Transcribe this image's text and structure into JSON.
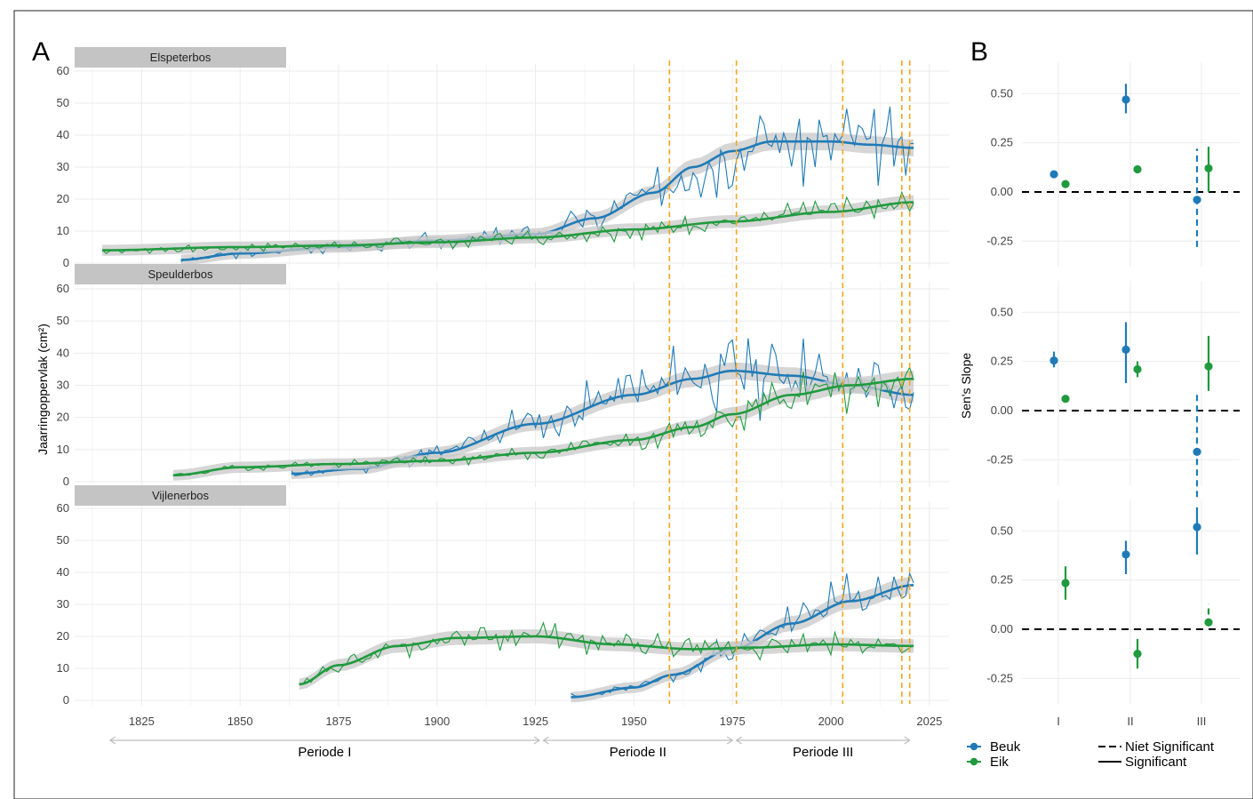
{
  "panel_labels": {
    "a": "A",
    "b": "B"
  },
  "colors": {
    "beuk": "#1f7bb7",
    "eik": "#1f9a3e",
    "periode_line": "#f5a623",
    "smooth_band": "#c8c8c8",
    "strip_bg": "#c4c4c4",
    "grid": "#ebebeb"
  },
  "chart_data": [
    {
      "id": "A",
      "type": "line",
      "ylabel": "Jaarringoppervlak (cm²)",
      "x_ticks": [
        1825,
        1850,
        1875,
        1900,
        1925,
        1950,
        1975,
        2000,
        2025
      ],
      "x_range": [
        1808,
        2030
      ],
      "y_ticks": [
        0,
        10,
        20,
        30,
        40,
        50,
        60
      ],
      "ylim": [
        0,
        60
      ],
      "periode_markers": [
        1959,
        1976,
        2003,
        2018,
        2020
      ],
      "periods": [
        {
          "label": "Periode I",
          "from": 1817,
          "to": 1926
        },
        {
          "label": "Periode II",
          "from": 1927,
          "to": 1975
        },
        {
          "label": "Periode III",
          "from": 1976,
          "to": 2020
        }
      ],
      "facets": [
        {
          "name": "Elspeterbos",
          "series": [
            {
              "name": "Beuk",
              "start": 1835,
              "end": 2021,
              "knots": [
                [
                  1835,
                  1
                ],
                [
                  1850,
                  3
                ],
                [
                  1875,
                  5
                ],
                [
                  1900,
                  7
                ],
                [
                  1925,
                  9
                ],
                [
                  1940,
                  14
                ],
                [
                  1955,
                  22
                ],
                [
                  1965,
                  30
                ],
                [
                  1975,
                  35
                ],
                [
                  1985,
                  38
                ],
                [
                  2000,
                  38
                ],
                [
                  2010,
                  37
                ],
                [
                  2021,
                  36
                ]
              ],
              "noise": 0.42,
              "seed": 3
            },
            {
              "name": "Eik",
              "start": 1815,
              "end": 2021,
              "knots": [
                [
                  1815,
                  4
                ],
                [
                  1850,
                  5
                ],
                [
                  1875,
                  5.5
                ],
                [
                  1900,
                  6.5
                ],
                [
                  1925,
                  8
                ],
                [
                  1950,
                  10.5
                ],
                [
                  1975,
                  13
                ],
                [
                  2000,
                  16
                ],
                [
                  2021,
                  19
                ]
              ],
              "noise": 0.35,
              "seed": 7
            }
          ]
        },
        {
          "name": "Speulderbos",
          "series": [
            {
              "name": "Beuk",
              "start": 1863,
              "end": 2021,
              "knots": [
                [
                  1863,
                  2.5
                ],
                [
                  1880,
                  4
                ],
                [
                  1900,
                  9
                ],
                [
                  1925,
                  18
                ],
                [
                  1950,
                  27
                ],
                [
                  1965,
                  32
                ],
                [
                  1975,
                  34.5
                ],
                [
                  1990,
                  33
                ],
                [
                  2005,
                  30
                ],
                [
                  2021,
                  27
                ]
              ],
              "noise": 0.45,
              "seed": 11
            },
            {
              "name": "Eik",
              "start": 1833,
              "end": 2021,
              "knots": [
                [
                  1833,
                  2
                ],
                [
                  1850,
                  4.5
                ],
                [
                  1875,
                  5.5
                ],
                [
                  1900,
                  6.5
                ],
                [
                  1925,
                  9
                ],
                [
                  1950,
                  13
                ],
                [
                  1965,
                  17
                ],
                [
                  1975,
                  21
                ],
                [
                  1990,
                  27
                ],
                [
                  2005,
                  30
                ],
                [
                  2021,
                  32
                ]
              ],
              "noise": 0.3,
              "seed": 19
            }
          ]
        },
        {
          "name": "Vijlenerbos",
          "series": [
            {
              "name": "Beuk",
              "start": 1934,
              "end": 2021,
              "knots": [
                [
                  1934,
                  1
                ],
                [
                  1950,
                  4
                ],
                [
                  1960,
                  8
                ],
                [
                  1975,
                  16
                ],
                [
                  1990,
                  24
                ],
                [
                  2005,
                  31
                ],
                [
                  2021,
                  36
                ]
              ],
              "noise": 0.32,
              "seed": 23
            },
            {
              "name": "Eik",
              "start": 1865,
              "end": 2021,
              "knots": [
                [
                  1865,
                  5
                ],
                [
                  1875,
                  11
                ],
                [
                  1890,
                  17
                ],
                [
                  1905,
                  19.5
                ],
                [
                  1925,
                  20
                ],
                [
                  1945,
                  17.5
                ],
                [
                  1965,
                  16
                ],
                [
                  1980,
                  16.5
                ],
                [
                  2000,
                  17.5
                ],
                [
                  2021,
                  17
                ]
              ],
              "noise": 0.27,
              "seed": 29
            }
          ]
        }
      ]
    },
    {
      "id": "B",
      "type": "scatter",
      "ylabel": "Sen's Slope",
      "categories": [
        "I",
        "II",
        "III"
      ],
      "y_ticks": [
        -0.25,
        0.0,
        0.25,
        0.5
      ],
      "y_tick_labels": [
        "-0.25",
        "0.00",
        "0.25",
        "0.50"
      ],
      "ylim": [
        -0.38,
        0.66
      ],
      "reference_line": 0.0,
      "facets": [
        {
          "name": "Elspeterbos",
          "points": [
            {
              "series": "Beuk",
              "category": "I",
              "value": 0.09,
              "low": 0.08,
              "high": 0.1,
              "significant": true
            },
            {
              "series": "Eik",
              "category": "I",
              "value": 0.04,
              "low": 0.03,
              "high": 0.05,
              "significant": true
            },
            {
              "series": "Beuk",
              "category": "II",
              "value": 0.47,
              "low": 0.4,
              "high": 0.55,
              "significant": true
            },
            {
              "series": "Eik",
              "category": "II",
              "value": 0.115,
              "low": 0.1,
              "high": 0.13,
              "significant": true
            },
            {
              "series": "Beuk",
              "category": "III",
              "value": -0.04,
              "low": -0.28,
              "high": 0.22,
              "significant": false
            },
            {
              "series": "Eik",
              "category": "III",
              "value": 0.12,
              "low": 0.0,
              "high": 0.23,
              "significant": true
            }
          ]
        },
        {
          "name": "Speulderbos",
          "points": [
            {
              "series": "Beuk",
              "category": "I",
              "value": 0.255,
              "low": 0.22,
              "high": 0.3,
              "significant": true
            },
            {
              "series": "Eik",
              "category": "I",
              "value": 0.06,
              "low": 0.05,
              "high": 0.07,
              "significant": true
            },
            {
              "series": "Beuk",
              "category": "II",
              "value": 0.31,
              "low": 0.14,
              "high": 0.45,
              "significant": true
            },
            {
              "series": "Eik",
              "category": "II",
              "value": 0.21,
              "low": 0.17,
              "high": 0.25,
              "significant": true
            },
            {
              "series": "Beuk",
              "category": "III",
              "value": -0.21,
              "low": -0.44,
              "high": 0.09,
              "significant": false
            },
            {
              "series": "Eik",
              "category": "III",
              "value": 0.225,
              "low": 0.1,
              "high": 0.38,
              "significant": true
            }
          ]
        },
        {
          "name": "Vijlenerbos",
          "points": [
            {
              "series": "Beuk",
              "category": "I",
              "value": null,
              "low": null,
              "high": null,
              "significant": true
            },
            {
              "series": "Eik",
              "category": "I",
              "value": 0.235,
              "low": 0.15,
              "high": 0.32,
              "significant": true
            },
            {
              "series": "Beuk",
              "category": "II",
              "value": 0.38,
              "low": 0.28,
              "high": 0.45,
              "significant": true
            },
            {
              "series": "Eik",
              "category": "II",
              "value": -0.125,
              "low": -0.2,
              "high": -0.05,
              "significant": true
            },
            {
              "series": "Beuk",
              "category": "III",
              "value": 0.52,
              "low": 0.38,
              "high": 0.62,
              "significant": true
            },
            {
              "series": "Eik",
              "category": "III",
              "value": 0.035,
              "low": 0.02,
              "high": 0.13,
              "significant": false
            }
          ]
        }
      ]
    }
  ],
  "legend": {
    "series": [
      {
        "name": "Beuk",
        "color": "#1f7bb7"
      },
      {
        "name": "Eik",
        "color": "#1f9a3e"
      }
    ],
    "linetypes": [
      {
        "label": "Niet Significant",
        "style": "dashed"
      },
      {
        "label": "Significant",
        "style": "solid"
      }
    ]
  }
}
